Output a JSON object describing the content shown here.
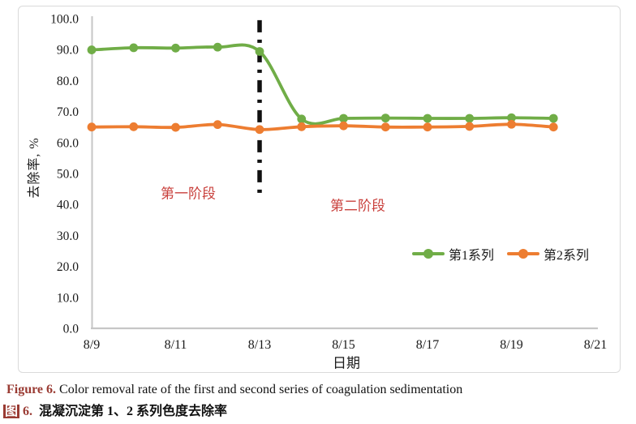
{
  "accent_colors": {
    "series1_green": "#70ad47",
    "series2_orange": "#ed7d31",
    "annotation_red": "#c9413d",
    "caption_maroon": "#9a3b33",
    "axis_gray": "#c6c6c6",
    "divider_black": "#111111"
  },
  "chart_data": {
    "type": "line",
    "title": "",
    "xlabel": "日期",
    "ylabel": "去除率, %",
    "ylim": [
      0,
      100
    ],
    "grid": false,
    "legend_position": "center-right",
    "x_categories": [
      "8/9",
      "8/10",
      "8/11",
      "8/12",
      "8/13",
      "8/14",
      "8/15",
      "8/16",
      "8/17",
      "8/18",
      "8/19",
      "8/20"
    ],
    "x_tick_labels": [
      "8/9",
      "8/11",
      "8/13",
      "8/15",
      "8/17",
      "8/19",
      "8/21"
    ],
    "y_tick_values": [
      0,
      10,
      20,
      30,
      40,
      50,
      60,
      70,
      80,
      90,
      100
    ],
    "y_tick_labels": [
      "0.0",
      "10.0",
      "20.0",
      "30.0",
      "40.0",
      "50.0",
      "60.0",
      "70.0",
      "80.0",
      "90.0",
      "100.0"
    ],
    "series": [
      {
        "name": "第1系列",
        "color": "#70ad47",
        "values": [
          89.9,
          90.6,
          90.5,
          90.8,
          89.4,
          67.6,
          67.8,
          67.9,
          67.8,
          67.8,
          68.0,
          67.8
        ]
      },
      {
        "name": "第2系列",
        "color": "#ed7d31",
        "values": [
          65.0,
          65.1,
          64.9,
          65.8,
          64.2,
          65.1,
          65.4,
          65.0,
          65.0,
          65.2,
          65.9,
          65.0
        ]
      }
    ],
    "divider": {
      "at": "8/13",
      "style": "dash-dot",
      "color": "#111111",
      "span_values": [
        43,
        99.5
      ]
    },
    "annotations": [
      {
        "text": "第一阶段",
        "color": "#c9413d"
      },
      {
        "text": "第二阶段",
        "color": "#c9413d"
      }
    ]
  },
  "figure": {
    "caption_en_label": "Figure 6.",
    "caption_en_text": "Color removal rate of the first and second series of coagulation sedimentation",
    "caption_zh_highlight": "图",
    "caption_zh_num": "6.",
    "caption_zh_text": "混凝沉淀第 1、2 系列色度去除率"
  }
}
